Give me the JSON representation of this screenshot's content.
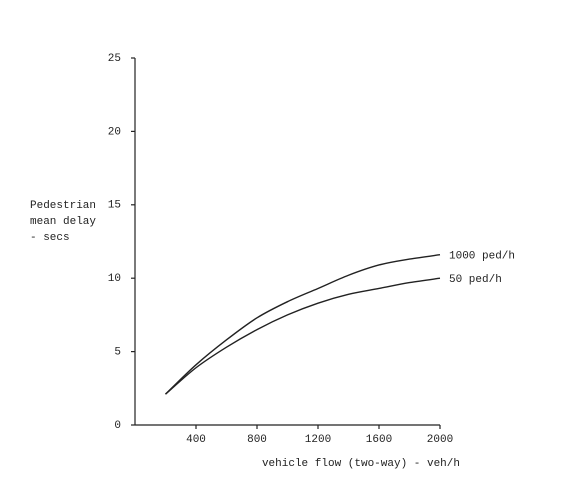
{
  "chart_data": {
    "type": "line",
    "ylabel": [
      "Pedestrian",
      "mean delay",
      "- secs"
    ],
    "xlabel": "vehicle flow (two-way) - veh/h",
    "x": [
      200,
      400,
      600,
      800,
      1000,
      1200,
      1400,
      1600,
      1800,
      2000
    ],
    "series": [
      {
        "name": "1000 ped/h",
        "color": "#222222",
        "values": [
          2.1,
          4.1,
          5.8,
          7.3,
          8.4,
          9.3,
          10.2,
          10.9,
          11.3,
          11.6
        ]
      },
      {
        "name": "50 ped/h",
        "color": "#222222",
        "values": [
          2.1,
          3.9,
          5.3,
          6.5,
          7.5,
          8.3,
          8.9,
          9.3,
          9.7,
          10.0
        ]
      }
    ],
    "xlim": [
      0,
      2000
    ],
    "xticks": [
      400,
      800,
      1200,
      1600,
      2000
    ],
    "ylim": [
      0,
      25
    ],
    "yticks": [
      0,
      5,
      10,
      15,
      20,
      25
    ],
    "grid": false
  }
}
